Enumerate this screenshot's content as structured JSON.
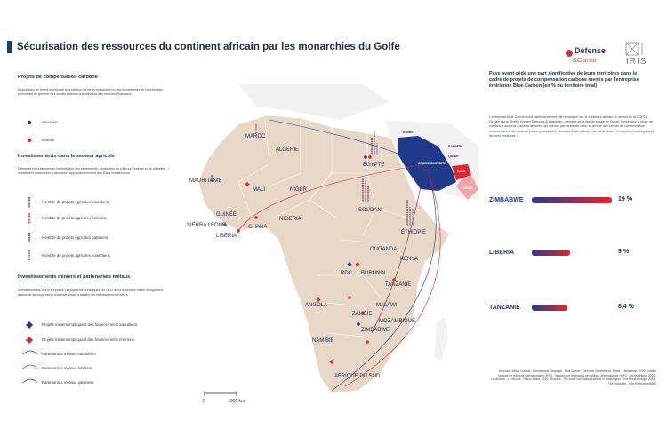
{
  "header": {
    "title": "Sécurisation des ressources du continent africain par les monarchies du Golfe",
    "logo_dc_line1": "Défense",
    "logo_dc_line2": "&Climat",
    "logo_iris": "IRIS"
  },
  "left": {
    "carbon": {
      "title": "Projets de compensation carbone",
      "desc": "Acquisitions de terres impliquant la protection de forêts existantes ou des programmes de reforestation permettant de générer des crédits carbone à destination des marchés financiers.",
      "legend": [
        {
          "label": "saoudien",
          "color": "#1f3a8a"
        },
        {
          "label": "émirien",
          "color": "#e3262c"
        }
      ]
    },
    "agri": {
      "title": "Investissements dans le secteur agricole",
      "desc": "Différents investissements (optimisation des rendements, production de cultures vivrières et de céréales...) contribuent notamment à sécuriser l'approvisionnement des États investisseurs.",
      "legend": [
        {
          "label": "Nombre de projets agricoles saoudiens",
          "color": "#1f3a8a"
        },
        {
          "label": "Nombre de projets agricoles émiriens",
          "color": "#e3262c"
        },
        {
          "label": "Nombre de projets agricoles qatariens",
          "color": "#8b1a2b"
        },
        {
          "label": "Nombre de projets agricoles koweïtiens",
          "color": "#4a78c2"
        }
      ]
    },
    "mining": {
      "title": "Investissements miniers et partenariats métaux",
      "desc": "Investissements des entreprises, principalement étatiques, du CCG dans le secteur minier et signature d'accords de coopération bilatérale visant à faciliter les investissements futurs.",
      "legend": [
        {
          "label": "Projets miniers impliquant des financements saoudiens",
          "color": "#1f3a8a"
        },
        {
          "label": "Projets miniers impliquant des financements émiriens",
          "color": "#e3262c"
        },
        {
          "label": "Partenariats métaux saoudiens",
          "color": "#1f3a8a"
        },
        {
          "label": "Partenariats métaux émiriens",
          "color": "#e3262c"
        },
        {
          "label": "Partenariats métaux qatariens",
          "color": "#8b1a2b"
        }
      ]
    }
  },
  "map": {
    "countries": [
      "MAROC",
      "ALGÉRIE",
      "ÉGYPTE",
      "MAURITANIE",
      "MALI",
      "NIGER",
      "SOUDAN",
      "GUINÉE",
      "SIERRA LEONE",
      "LIBERIA",
      "GHANA",
      "NIGERIA",
      "ÉTHIOPIE",
      "OUGANDA",
      "KENYA",
      "RDC",
      "BURUNDI",
      "TANZANIE",
      "ANGOLA",
      "MALAWI",
      "ZAMBIE",
      "MOZAMBIQUE",
      "ZIMBABWE",
      "NAMIBIE",
      "AFRIQUE DU SUD"
    ],
    "gulf": [
      "KOWEÏT",
      "BAHREÏN",
      "ARABIE SAOUDITE",
      "QATAR",
      "E.A.U.",
      "OMAN"
    ],
    "scale_zero": "0",
    "scale_label": "1000 km",
    "colors": {
      "land": "#e8d8c8",
      "other_land": "#f2f2f2",
      "saudi": "#1f3a8a",
      "emirati": "#e3262c",
      "qatari": "#8b1a2b",
      "kuwaiti": "#4a78c2"
    }
  },
  "right": {
    "title": "Pays ayant cédé une part significative de leurs territoires dans le cadre de projets de compensation carbone menés par l'entreprise émirienne Blue Carbon (en % du territoire total)",
    "desc": "L'entreprise Blue Carbon s'est particulièrement fait remarquer sur le continent africain en amont de la COP28. Dirigée par le Sheikh Ahmed Dalmook Al Maktoum, membre de la famille royale de Dubaï, l'entreprise a signé de nombreux accords d'achats de forêts qui doivent permettre de créer et vendre des crédits de compensation carbone tant à des acteurs privés qu'étatiques. Certains États africains ont ainsi cédé à l'entreprise une large part de leurs territoires.",
    "bars": [
      {
        "label": "ZIMBABWE",
        "value": 19,
        "display": "19 %"
      },
      {
        "label": "LIBERIA",
        "value": 9,
        "display": "9 %"
      },
      {
        "label": "TANZANIE",
        "value": 8.4,
        "display": "8,4 %"
      }
    ],
    "sources": "Sources : Africa Outlook ; Afreximbank Research ; BlueCarbon ; Direction Générale du Trésor ; Henderson, 2020 ; Institut français de relations internationales (IFRI) ; Institut pour les études de politique internationale (ISPI) ; JeuneAfrique, 2024 ; LandMatrix ; Le Monde ; Nation Africa, 2024 ; Reuters ; The Arab Gulf States Institute in Washington ; The Breakthrough, 2024 ; The Guardian ; Yale Environment360"
  }
}
